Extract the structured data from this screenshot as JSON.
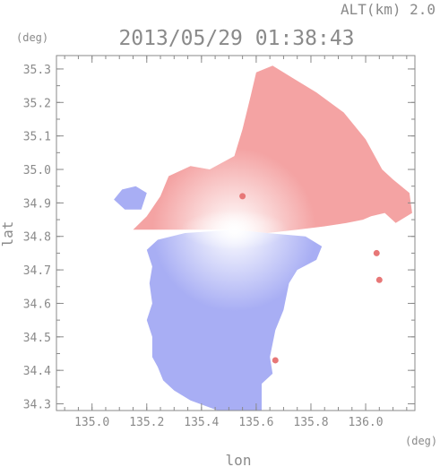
{
  "header": {
    "altitude_label": "ALT(km) 2.0",
    "timestamp": "2013/05/29 01:38:43"
  },
  "chart_data": {
    "type": "heatmap",
    "title": "2013/05/29 01:38:43",
    "subtitle": "ALT(km) 2.0",
    "xlabel": "lon",
    "ylabel": "lat",
    "x_unit": "(deg)",
    "y_unit": "(deg)",
    "xlim": [
      134.87,
      136.18
    ],
    "ylim": [
      34.28,
      35.34
    ],
    "x_ticks": [
      135.0,
      135.2,
      135.4,
      135.6,
      135.8,
      136.0
    ],
    "x_tick_labels": [
      "135.0",
      "135.2",
      "135.4",
      "135.6",
      "135.8",
      "136.0"
    ],
    "y_ticks": [
      34.3,
      34.4,
      34.5,
      34.6,
      34.7,
      34.8,
      34.9,
      35.0,
      35.1,
      35.2,
      35.3
    ],
    "y_tick_labels": [
      "34.3",
      "34.4",
      "34.5",
      "34.6",
      "34.7",
      "34.8",
      "34.9",
      "35.0",
      "35.1",
      "35.2",
      "35.3"
    ],
    "grid": false,
    "colors": {
      "positive": "#f4a3a3",
      "positive_strong": "#e77777",
      "negative": "#a8aef4",
      "negative_strong": "#6f79e6",
      "axis": "#8a8a8a"
    },
    "radar_center": [
      135.52,
      34.82
    ],
    "regions": [
      {
        "name": "north-field",
        "polarity": "positive",
        "outline": [
          [
            135.15,
            34.82
          ],
          [
            135.2,
            34.86
          ],
          [
            135.25,
            34.92
          ],
          [
            135.28,
            34.98
          ],
          [
            135.36,
            35.01
          ],
          [
            135.43,
            35.0
          ],
          [
            135.52,
            35.04
          ],
          [
            135.55,
            35.12
          ],
          [
            135.58,
            35.22
          ],
          [
            135.6,
            35.29
          ],
          [
            135.66,
            35.31
          ],
          [
            135.74,
            35.27
          ],
          [
            135.82,
            35.23
          ],
          [
            135.92,
            35.17
          ],
          [
            136.0,
            35.09
          ],
          [
            136.06,
            35.0
          ],
          [
            136.1,
            34.97
          ],
          [
            136.16,
            34.93
          ],
          [
            136.17,
            34.87
          ],
          [
            136.11,
            34.84
          ],
          [
            136.07,
            34.87
          ],
          [
            136.02,
            34.86
          ],
          [
            135.99,
            34.85
          ],
          [
            135.93,
            34.84
          ],
          [
            135.85,
            34.83
          ],
          [
            135.75,
            34.82
          ],
          [
            135.64,
            34.81
          ],
          [
            135.52,
            34.82
          ],
          [
            135.35,
            34.82
          ],
          [
            135.25,
            34.82
          ]
        ]
      },
      {
        "name": "south-field",
        "polarity": "negative",
        "outline": [
          [
            135.52,
            34.82
          ],
          [
            135.34,
            34.81
          ],
          [
            135.24,
            34.79
          ],
          [
            135.2,
            34.76
          ],
          [
            135.22,
            34.71
          ],
          [
            135.21,
            34.66
          ],
          [
            135.22,
            34.6
          ],
          [
            135.2,
            34.55
          ],
          [
            135.22,
            34.5
          ],
          [
            135.22,
            34.44
          ],
          [
            135.24,
            34.41
          ],
          [
            135.26,
            34.37
          ],
          [
            135.3,
            34.34
          ],
          [
            135.36,
            34.31
          ],
          [
            135.46,
            34.28
          ],
          [
            135.62,
            34.28
          ],
          [
            135.62,
            34.36
          ],
          [
            135.66,
            34.39
          ],
          [
            135.65,
            34.44
          ],
          [
            135.67,
            34.52
          ],
          [
            135.7,
            34.58
          ],
          [
            135.72,
            34.66
          ],
          [
            135.75,
            34.7
          ],
          [
            135.82,
            34.73
          ],
          [
            135.84,
            34.77
          ],
          [
            135.78,
            34.8
          ],
          [
            135.64,
            34.81
          ]
        ]
      },
      {
        "name": "west-inlet-field",
        "polarity": "negative",
        "outline": [
          [
            135.08,
            34.91
          ],
          [
            135.11,
            34.94
          ],
          [
            135.16,
            34.95
          ],
          [
            135.2,
            34.93
          ],
          [
            135.18,
            34.88
          ],
          [
            135.12,
            34.88
          ]
        ]
      }
    ],
    "echo_spots": [
      {
        "name": "south-spot",
        "polarity": "positive_strong",
        "position": [
          135.67,
          34.43
        ]
      },
      {
        "name": "east-spot-1",
        "polarity": "positive_strong",
        "position": [
          136.04,
          34.75
        ]
      },
      {
        "name": "east-spot-2",
        "polarity": "positive_strong",
        "position": [
          136.05,
          34.67
        ]
      },
      {
        "name": "north-spot",
        "polarity": "positive_strong",
        "position": [
          135.55,
          34.92
        ]
      }
    ]
  }
}
